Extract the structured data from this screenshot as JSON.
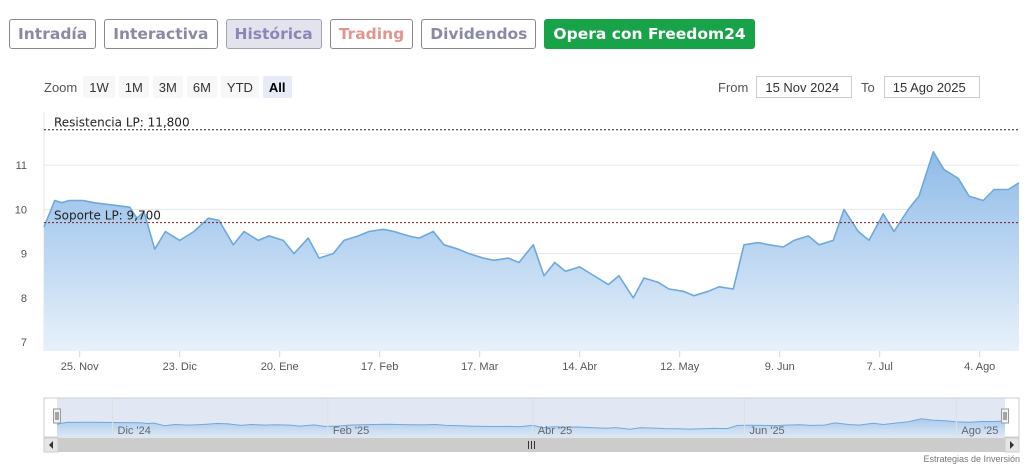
{
  "tabs": [
    {
      "label": "Intradía"
    },
    {
      "label": "Interactiva"
    },
    {
      "label": "Histórica"
    },
    {
      "label": "Trading"
    },
    {
      "label": "Dividendos"
    },
    {
      "label": "Opera con Freedom24"
    }
  ],
  "toolbar": {
    "zoom_label": "Zoom",
    "zoom_buttons": [
      "1W",
      "1M",
      "3M",
      "6M",
      "YTD",
      "All"
    ],
    "selected_zoom": "All"
  },
  "range": {
    "from_label": "From",
    "from_value": "15 Nov 2024",
    "to_label": "To",
    "to_value": "15 Ago 2025"
  },
  "colors": {
    "line": "#6fa8dc",
    "area_top": "#8fbbe8",
    "area_bottom": "#e8f1fb",
    "support_line": "#7a1f1f",
    "resistance_line": "#222222",
    "cta": "#18a348"
  },
  "credit": "Estrategias de Inversión",
  "chart_data": {
    "type": "area",
    "xlim": [
      "2024-11-15",
      "2025-08-15"
    ],
    "ylim": [
      6.8,
      12.2
    ],
    "y_ticks": [
      7,
      8,
      9,
      10,
      11
    ],
    "y_tick_labels": [
      "7",
      "8",
      "9",
      "10",
      "11"
    ],
    "x_tick_labels": [
      "25. Nov",
      "23. Dic",
      "20. Ene",
      "17. Feb",
      "17. Mar",
      "14. Abr",
      "12. May",
      "9. Jun",
      "7. Jul",
      "4. Ago"
    ],
    "x_tick_dates": [
      "2024-11-25",
      "2024-12-23",
      "2025-01-20",
      "2025-02-17",
      "2025-03-17",
      "2025-04-14",
      "2025-05-12",
      "2025-06-09",
      "2025-07-07",
      "2025-08-04"
    ],
    "navigator_labels": [
      "Dic '24",
      "Feb '25",
      "Abr '25",
      "Jun '25",
      "Ago '25"
    ],
    "navigator_dates": [
      "2024-12-01",
      "2025-02-01",
      "2025-04-01",
      "2025-06-01",
      "2025-08-01"
    ],
    "grid": true,
    "annotations": [
      {
        "label": "Resistencia LP: 11,800",
        "value": 11.8
      },
      {
        "label": "Soporte LP: 9,700",
        "value": 9.7
      }
    ],
    "series": [
      {
        "x": [
          "2024-11-15",
          "2024-11-18",
          "2024-11-20",
          "2024-11-22",
          "2024-11-26",
          "2024-11-29",
          "2024-12-04",
          "2024-12-09",
          "2024-12-11",
          "2024-12-13",
          "2024-12-16",
          "2024-12-19",
          "2024-12-23",
          "2024-12-27",
          "2024-12-31",
          "2025-01-03",
          "2025-01-07",
          "2025-01-10",
          "2025-01-14",
          "2025-01-17",
          "2025-01-21",
          "2025-01-24",
          "2025-01-28",
          "2025-01-31",
          "2025-02-04",
          "2025-02-07",
          "2025-02-11",
          "2025-02-14",
          "2025-02-18",
          "2025-02-21",
          "2025-02-25",
          "2025-02-28",
          "2025-03-04",
          "2025-03-07",
          "2025-03-11",
          "2025-03-14",
          "2025-03-18",
          "2025-03-21",
          "2025-03-25",
          "2025-03-28",
          "2025-04-01",
          "2025-04-04",
          "2025-04-07",
          "2025-04-10",
          "2025-04-14",
          "2025-04-17",
          "2025-04-22",
          "2025-04-25",
          "2025-04-29",
          "2025-05-02",
          "2025-05-06",
          "2025-05-09",
          "2025-05-13",
          "2025-05-16",
          "2025-05-20",
          "2025-05-23",
          "2025-05-27",
          "2025-05-30",
          "2025-06-03",
          "2025-06-06",
          "2025-06-10",
          "2025-06-13",
          "2025-06-17",
          "2025-06-20",
          "2025-06-24",
          "2025-06-27",
          "2025-07-01",
          "2025-07-04",
          "2025-07-08",
          "2025-07-11",
          "2025-07-15",
          "2025-07-18",
          "2025-07-22",
          "2025-07-25",
          "2025-07-29",
          "2025-08-01",
          "2025-08-05",
          "2025-08-08",
          "2025-08-12",
          "2025-08-15"
        ],
        "y": [
          9.6,
          10.2,
          10.15,
          10.2,
          10.2,
          10.15,
          10.1,
          10.05,
          9.8,
          9.95,
          9.1,
          9.5,
          9.3,
          9.5,
          9.8,
          9.75,
          9.2,
          9.5,
          9.3,
          9.4,
          9.3,
          9.0,
          9.35,
          8.9,
          9.0,
          9.3,
          9.4,
          9.5,
          9.55,
          9.5,
          9.4,
          9.35,
          9.5,
          9.2,
          9.1,
          9.0,
          8.9,
          8.85,
          8.9,
          8.8,
          9.2,
          8.5,
          8.8,
          8.6,
          8.7,
          8.55,
          8.3,
          8.5,
          8.0,
          8.45,
          8.35,
          8.2,
          8.15,
          8.05,
          8.15,
          8.25,
          8.2,
          9.2,
          9.25,
          9.2,
          9.15,
          9.3,
          9.4,
          9.2,
          9.3,
          10.0,
          9.5,
          9.3,
          9.9,
          9.5,
          10.0,
          10.3,
          11.3,
          10.9,
          10.7,
          10.3,
          10.2,
          10.45,
          10.45,
          10.6
        ]
      }
    ]
  }
}
